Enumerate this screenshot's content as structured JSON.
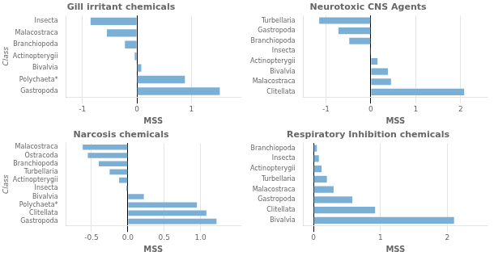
{
  "chart_data": [
    {
      "type": "bar",
      "orientation": "horizontal",
      "title": "Gill irritant chemicals",
      "categories": [
        "Insecta",
        "Malacostraca",
        "Branchiopoda",
        "Actinopterygii",
        "Bivalvia",
        "Polychaeta*",
        "Gastropoda"
      ],
      "values": [
        -0.85,
        -0.55,
        -0.22,
        -0.04,
        0.08,
        0.88,
        1.52
      ],
      "color": "#7bafd4",
      "xlim": [
        -1.3,
        1.9
      ],
      "xticks": [
        -1,
        0,
        1
      ],
      "xlabel": "MSS",
      "ylabel": "Class",
      "grid": true
    },
    {
      "type": "bar",
      "orientation": "horizontal",
      "title": "Neurotoxic CNS Agents",
      "categories": [
        "Turbellaria",
        "Gastropoda",
        "Branchiopoda",
        "Insecta",
        "Actinopterygii",
        "Bivalvia",
        "Malacostraca",
        "Clitellata"
      ],
      "values": [
        -1.15,
        -0.72,
        -0.48,
        -0.02,
        0.15,
        0.38,
        0.45,
        2.08
      ],
      "color": "#7bafd4",
      "xlim": [
        -1.5,
        2.6
      ],
      "xticks": [
        -1,
        0,
        1,
        2
      ],
      "xlabel": "MSS",
      "grid": true
    },
    {
      "type": "bar",
      "orientation": "horizontal",
      "title": "Narcosis chemicals",
      "categories": [
        "Malacostraca",
        "Ostracoda",
        "Branchiopoda",
        "Turbellaria",
        "Actinopterygii",
        "Insecta",
        "Bivalvia",
        "Polychaeta*",
        "Clitellata",
        "Gastropoda"
      ],
      "values": [
        -0.62,
        -0.55,
        -0.4,
        -0.25,
        -0.12,
        -0.02,
        0.22,
        0.95,
        1.08,
        1.22
      ],
      "color": "#7bafd4",
      "xlim": [
        -0.85,
        1.55
      ],
      "xticks": [
        -0.5,
        {
          "value": 0,
          "label": "0.0"
        },
        0.5,
        {
          "value": 1,
          "label": "1.0"
        }
      ],
      "xlabel": "MSS",
      "ylabel": "Class",
      "grid": true
    },
    {
      "type": "bar",
      "orientation": "horizontal",
      "title": "Respiratory Inhibition chemicals",
      "categories": [
        "Branchiopoda",
        "Insecta",
        "Actinopterygii",
        "Turbellaria",
        "Malacostraca",
        "Gastropoda",
        "Clitellata",
        "Bivalvia"
      ],
      "values": [
        0.05,
        0.08,
        0.12,
        0.2,
        0.3,
        0.58,
        0.92,
        2.1
      ],
      "color": "#7bafd4",
      "xlim": [
        -0.15,
        2.6
      ],
      "xticks": [
        0,
        1,
        2
      ],
      "xlabel": "MSS",
      "grid": true
    }
  ]
}
